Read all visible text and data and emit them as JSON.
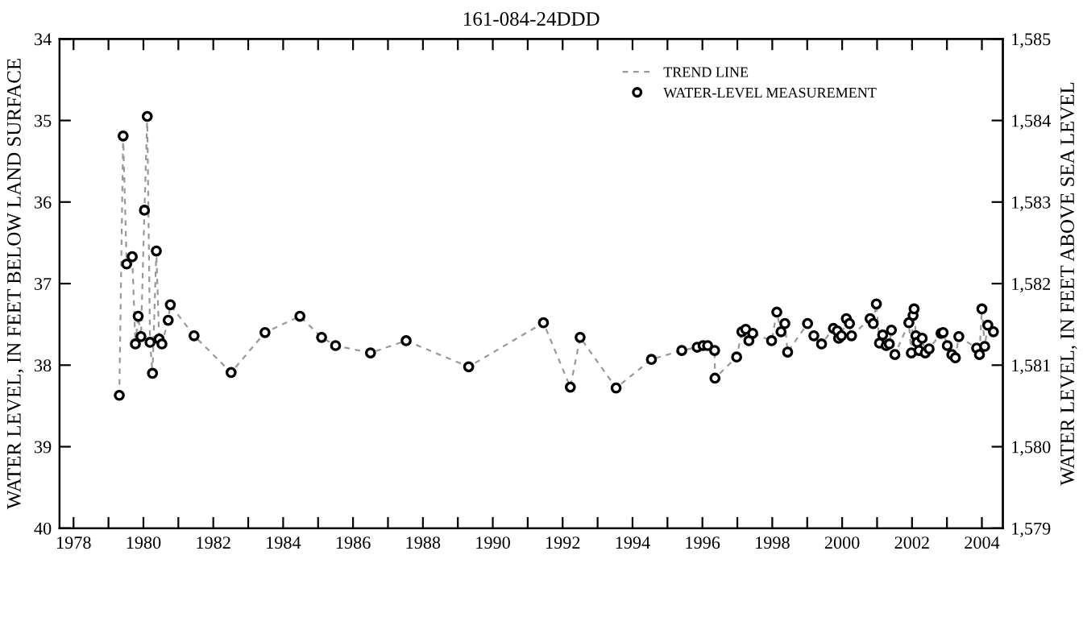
{
  "chart_data": {
    "type": "scatter",
    "title": "161-084-24DDD",
    "ylabel": "WATER LEVEL, IN FEET BELOW LAND SURFACE",
    "y2label": "WATER LEVEL, IN FEET ABOVE SEA LEVEL",
    "x": [
      1979.31,
      1979.42,
      1979.52,
      1979.68,
      1979.77,
      1979.85,
      1979.93,
      1980.03,
      1980.11,
      1980.19,
      1980.26,
      1980.37,
      1980.45,
      1980.53,
      1980.71,
      1980.77,
      1981.45,
      1982.51,
      1983.48,
      1984.48,
      1985.1,
      1985.5,
      1986.5,
      1987.52,
      1989.31,
      1991.45,
      1992.22,
      1992.5,
      1993.53,
      1994.54,
      1995.41,
      1995.85,
      1996.02,
      1996.15,
      1996.35,
      1996.36,
      1996.98,
      1997.13,
      1997.24,
      1997.33,
      1997.44,
      1997.98,
      1998.13,
      1998.25,
      1998.36,
      1998.44,
      1999.01,
      1999.19,
      1999.41,
      1999.75,
      1999.86,
      1999.9,
      1999.98,
      2000.12,
      2000.21,
      2000.27,
      2000.8,
      2000.89,
      2000.98,
      2001.07,
      2001.16,
      2001.26,
      2001.35,
      2001.41,
      2001.51,
      2001.91,
      2001.98,
      2002.03,
      2002.06,
      2002.11,
      2002.15,
      2002.2,
      2002.29,
      2002.38,
      2002.49,
      2002.83,
      2002.89,
      2003.01,
      2003.14,
      2003.24,
      2003.34,
      2003.85,
      2003.93,
      2004.0,
      2004.08,
      2004.17,
      2004.33
    ],
    "series": [
      {
        "name": "TREND LINE",
        "type": "line",
        "color": "#999999",
        "line_style": "dashed",
        "marker": "none",
        "values": [
          38.37,
          35.19,
          36.76,
          36.67,
          37.74,
          37.4,
          37.65,
          36.1,
          34.95,
          37.72,
          38.1,
          36.6,
          37.68,
          37.74,
          37.45,
          37.26,
          37.64,
          38.09,
          37.6,
          37.4,
          37.66,
          37.76,
          37.85,
          37.7,
          38.02,
          37.48,
          38.27,
          37.66,
          38.28,
          37.93,
          37.82,
          37.78,
          37.76,
          37.76,
          37.82,
          38.16,
          37.9,
          37.59,
          37.56,
          37.7,
          37.61,
          37.7,
          37.35,
          37.59,
          37.49,
          37.84,
          37.49,
          37.64,
          37.74,
          37.55,
          37.58,
          37.67,
          37.64,
          37.43,
          37.49,
          37.64,
          37.43,
          37.49,
          37.25,
          37.73,
          37.63,
          37.76,
          37.74,
          37.57,
          37.87,
          37.48,
          37.85,
          37.39,
          37.31,
          37.64,
          37.72,
          37.82,
          37.67,
          37.85,
          37.8,
          37.61,
          37.6,
          37.76,
          37.87,
          37.91,
          37.65,
          37.79,
          37.87,
          37.31,
          37.77,
          37.51,
          37.59
        ]
      },
      {
        "name": "WATER-LEVEL MEASUREMENT",
        "color": "#000000",
        "marker": "circle",
        "values": [
          38.37,
          35.19,
          36.76,
          36.67,
          37.74,
          37.4,
          37.65,
          36.1,
          34.95,
          37.72,
          38.1,
          36.6,
          37.68,
          37.74,
          37.45,
          37.26,
          37.64,
          38.09,
          37.6,
          37.4,
          37.66,
          37.76,
          37.85,
          37.7,
          38.02,
          37.48,
          38.27,
          37.66,
          38.28,
          37.93,
          37.82,
          37.78,
          37.76,
          37.76,
          37.82,
          38.16,
          37.9,
          37.59,
          37.56,
          37.7,
          37.61,
          37.7,
          37.35,
          37.59,
          37.49,
          37.84,
          37.49,
          37.64,
          37.74,
          37.55,
          37.58,
          37.67,
          37.64,
          37.43,
          37.49,
          37.64,
          37.43,
          37.49,
          37.25,
          37.73,
          37.63,
          37.76,
          37.74,
          37.57,
          37.87,
          37.48,
          37.85,
          37.39,
          37.31,
          37.64,
          37.72,
          37.82,
          37.67,
          37.85,
          37.8,
          37.61,
          37.6,
          37.76,
          37.87,
          37.91,
          37.65,
          37.79,
          37.87,
          37.31,
          37.77,
          37.51,
          37.59
        ]
      }
    ],
    "xlim": [
      1977.6,
      2004.6
    ],
    "xticks": [
      1978,
      {
        "value": 1979,
        "label": null
      },
      1980,
      {
        "value": 1981,
        "label": null
      },
      1982,
      {
        "value": 1983,
        "label": null
      },
      1984,
      {
        "value": 1985,
        "label": null
      },
      1986,
      {
        "value": 1987,
        "label": null
      },
      1988,
      {
        "value": 1989,
        "label": null
      },
      1990,
      {
        "value": 1991,
        "label": null
      },
      1992,
      {
        "value": 1993,
        "label": null
      },
      1994,
      {
        "value": 1995,
        "label": null
      },
      1996,
      {
        "value": 1997,
        "label": null
      },
      1998,
      {
        "value": 1999,
        "label": null
      },
      2000,
      {
        "value": 2001,
        "label": null
      },
      2002,
      {
        "value": 2003,
        "label": null
      },
      2004
    ],
    "ylim": [
      40,
      34
    ],
    "yticks": [
      34,
      35,
      36,
      37,
      38,
      39,
      40
    ],
    "y2lim": [
      1579,
      1585
    ],
    "y2ticks": [
      {
        "value": 1579,
        "label": "1,579"
      },
      {
        "value": 1580,
        "label": "1,580"
      },
      {
        "value": 1581,
        "label": "1,581"
      },
      {
        "value": 1582,
        "label": "1,582"
      },
      {
        "value": 1583,
        "label": "1,583"
      },
      {
        "value": 1584,
        "label": "1,584"
      },
      {
        "value": 1585,
        "label": "1,585"
      }
    ],
    "grid": false,
    "legend": "top right"
  }
}
